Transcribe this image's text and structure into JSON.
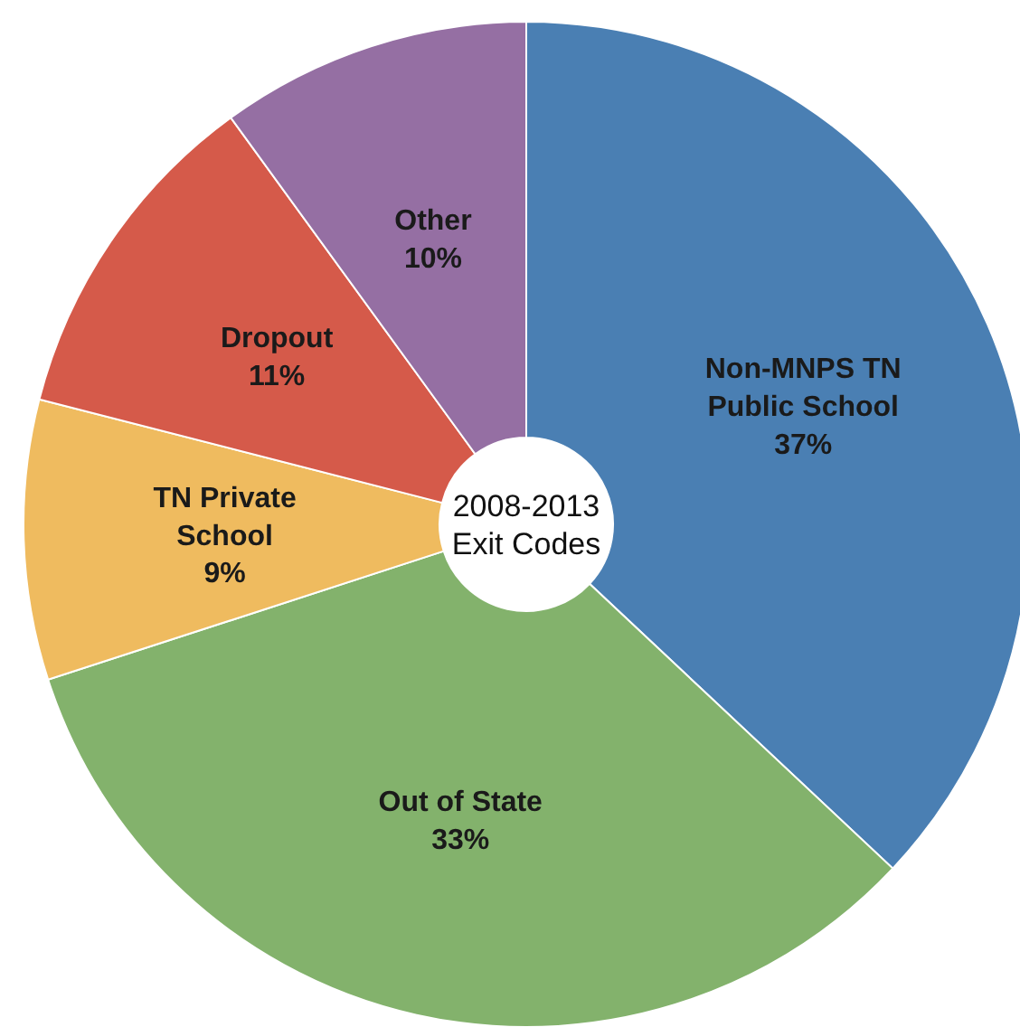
{
  "chart_data": {
    "type": "donut",
    "title": "2008-2013 Exit Codes",
    "categories": [
      "Non-MNPS TN Public School",
      "Out of State",
      "TN Private School",
      "Dropout",
      "Other"
    ],
    "values": [
      37,
      33,
      9,
      11,
      10
    ],
    "colors": [
      "#4a7fb3",
      "#83b26c",
      "#efbb5f",
      "#d55a4a",
      "#956fa3"
    ],
    "value_labels": [
      "37%",
      "33%",
      "9%",
      "11%",
      "10%"
    ]
  }
}
